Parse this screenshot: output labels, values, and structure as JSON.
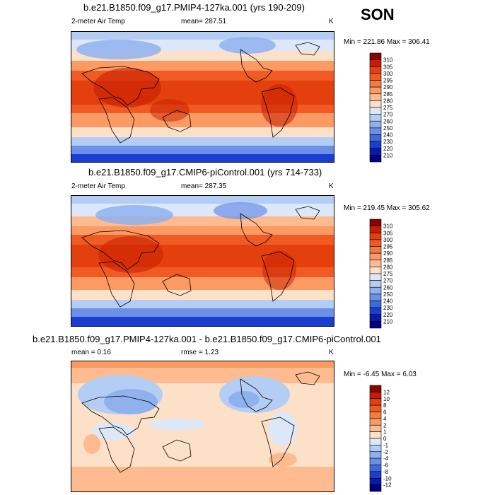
{
  "season": "SON",
  "panels": [
    {
      "title": "b.e21.B1850.f09_g17.PMIP4-127ka.001 (yrs 190-209)",
      "left": "2-meter Air Temp",
      "center": "mean= 287.51",
      "right": "K",
      "minmax": "Min = 221.86 Max = 306.41",
      "levels": [
        "310",
        "305",
        "300",
        "295",
        "290",
        "285",
        "280",
        "275",
        "270",
        "260",
        "250",
        "240",
        "230",
        "220",
        "210"
      ],
      "colors": [
        "#8b0000",
        "#c81e00",
        "#e4400e",
        "#f05a25",
        "#f77a3f",
        "#fb9a62",
        "#fdbb8f",
        "#fde0c8",
        "#dce8fa",
        "#b4cdf4",
        "#8fb2ee",
        "#6a90e8",
        "#4068de",
        "#1a3fd0",
        "#0a1aa8",
        "#000080"
      ]
    },
    {
      "title": "b.e21.B1850.f09_g17.CMIP6-piControl.001 (yrs 714-733)",
      "left": "2-meter Air Temp",
      "center": "mean= 287.35",
      "right": "K",
      "minmax": "Min = 219.45 Max = 305.62",
      "levels": [
        "310",
        "305",
        "300",
        "295",
        "290",
        "285",
        "280",
        "275",
        "270",
        "260",
        "250",
        "240",
        "230",
        "220",
        "210"
      ],
      "colors": [
        "#8b0000",
        "#c81e00",
        "#e4400e",
        "#f05a25",
        "#f77a3f",
        "#fb9a62",
        "#fdbb8f",
        "#fde0c8",
        "#dce8fa",
        "#b4cdf4",
        "#8fb2ee",
        "#6a90e8",
        "#4068de",
        "#1a3fd0",
        "#0a1aa8",
        "#000080"
      ]
    },
    {
      "title": "b.e21.B1850.f09_g17.PMIP4-127ka.001 - b.e21.B1850.f09_g17.CMIP6-piControl.001",
      "left": "mean =   0.16",
      "center": "rmse =   1.23",
      "right": "K",
      "minmax": "Min =  -6.45 Max =   6.03",
      "levels": [
        "12",
        "10",
        "8",
        "6",
        "4",
        "2",
        "1",
        "0",
        "-1",
        "-2",
        "-4",
        "-6",
        "-8",
        "-10",
        "-12"
      ],
      "colors": [
        "#8b0000",
        "#c81e00",
        "#e4400e",
        "#f05a25",
        "#f77a3f",
        "#fb9a62",
        "#fdbb8f",
        "#fde0c8",
        "#dce8fa",
        "#b4cdf4",
        "#8fb2ee",
        "#6a90e8",
        "#4068de",
        "#1a3fd0",
        "#0a1aa8",
        "#000080"
      ]
    }
  ]
}
